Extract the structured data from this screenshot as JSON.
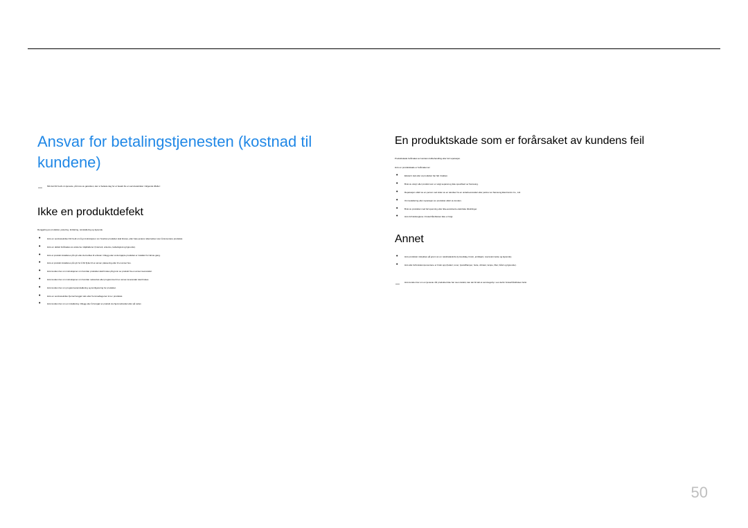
{
  "page_number": "50",
  "colors": {
    "accent": "#1f87e6",
    "text": "#000000",
    "page_num": "#bfbfbf",
    "background": "#ffffff",
    "rule": "#000000"
  },
  "left": {
    "heading": "Ansvar for betalingstjenesten (kostnad til kundene)",
    "note": "Når det blir bedt om tjeneste, på tross av garantien, kan vi belaste deg for et besøk fra en servicetekniker i følgende tilfeller:",
    "section1": {
      "heading": "Ikke en produktdefekt",
      "lead": "Rengjøring av produktet, justering, forklaring, reinstallering og lignende.",
      "items": [
        "Hvis en servicetekniker blir bedt om å gi instruksjoner om hvordan produktet skal brukes, eller bare justerer alternativer uten å demontere produktet.",
        "Hvis en defekt forårsakes av eksterne miljøfaktorer (Internett, antenne, kabelsignal og lignende).",
        "Hvis et produkt installeres på nytt eller det kobles til enheter i tillegg etter at det kjøpte produktet er installert for første gang.",
        "Hvis et produkt installeres på nytt for å bli flyttet til en annen plassering eller til et annet hus.",
        "Hvis kunden ber om instruksjoner om hvordan produktet skal brukes på grunn av produkt fra en annen leverandør.",
        "Hvis kunden ber om instruksjoner om hvordan nettverket eller programmet til en annen leverandør skal brukes.",
        "Hvis kunden ber om programvareinstallering og konfigurering for produktet.",
        "Hvis en servicetekniker fjerner/rengjør støv eller fremmedlegemer inne i produktet.",
        "Hvis kunden ber om en installering i tillegg etter å ha kjøpt et produkt via hjemmehandel eller på nettet."
      ]
    }
  },
  "right": {
    "section2": {
      "heading": "En produktskade som er forårsaket av kundens feil",
      "lead1": "Produktskade forårsaket av kundens feilbehandling eller feil reparasjon.",
      "lead2": "Hvis en produktskade er forårsaket av:",
      "items": [
        "Eksternt støt eller at produktet har falt i bakken.",
        "Bruk av utstyr eller produkt som er solgt separat og ikke spesifisert av Samsung.",
        "Reparasjon utført av en person ved siden av en tekniker fra en underleverandør eller partner av Samsung Electronics Co., Ltd.",
        "Ommodellering eller reparasjon av produktet utført av kunden.",
        "Bruk av produktet med feil spenning eller ikke-autoriserte elektriske tilkoblinger.",
        "Hvis forholdsreglene i brukerhåndboken ikke er fulgt."
      ]
    },
    "section3": {
      "heading": "Annet",
      "items": [
        "Hvis produktet mislykkes på grunn av en naturkatastrofe (lynnedslag, brann, jordskjelv, oversvømmelse og lignende).",
        "Hvis alle forbrukskomponentene er brukt opp (batteri, toner, lysstofflamper, hode, vibrator, lampe, filter, bånd og lignende)."
      ],
      "note": "Hvis kunden ber om en tjeneste når produktet ikke har noen defekt, kan det bli tatt et servicegebyr. Les derfor brukerhåndboken først."
    }
  }
}
